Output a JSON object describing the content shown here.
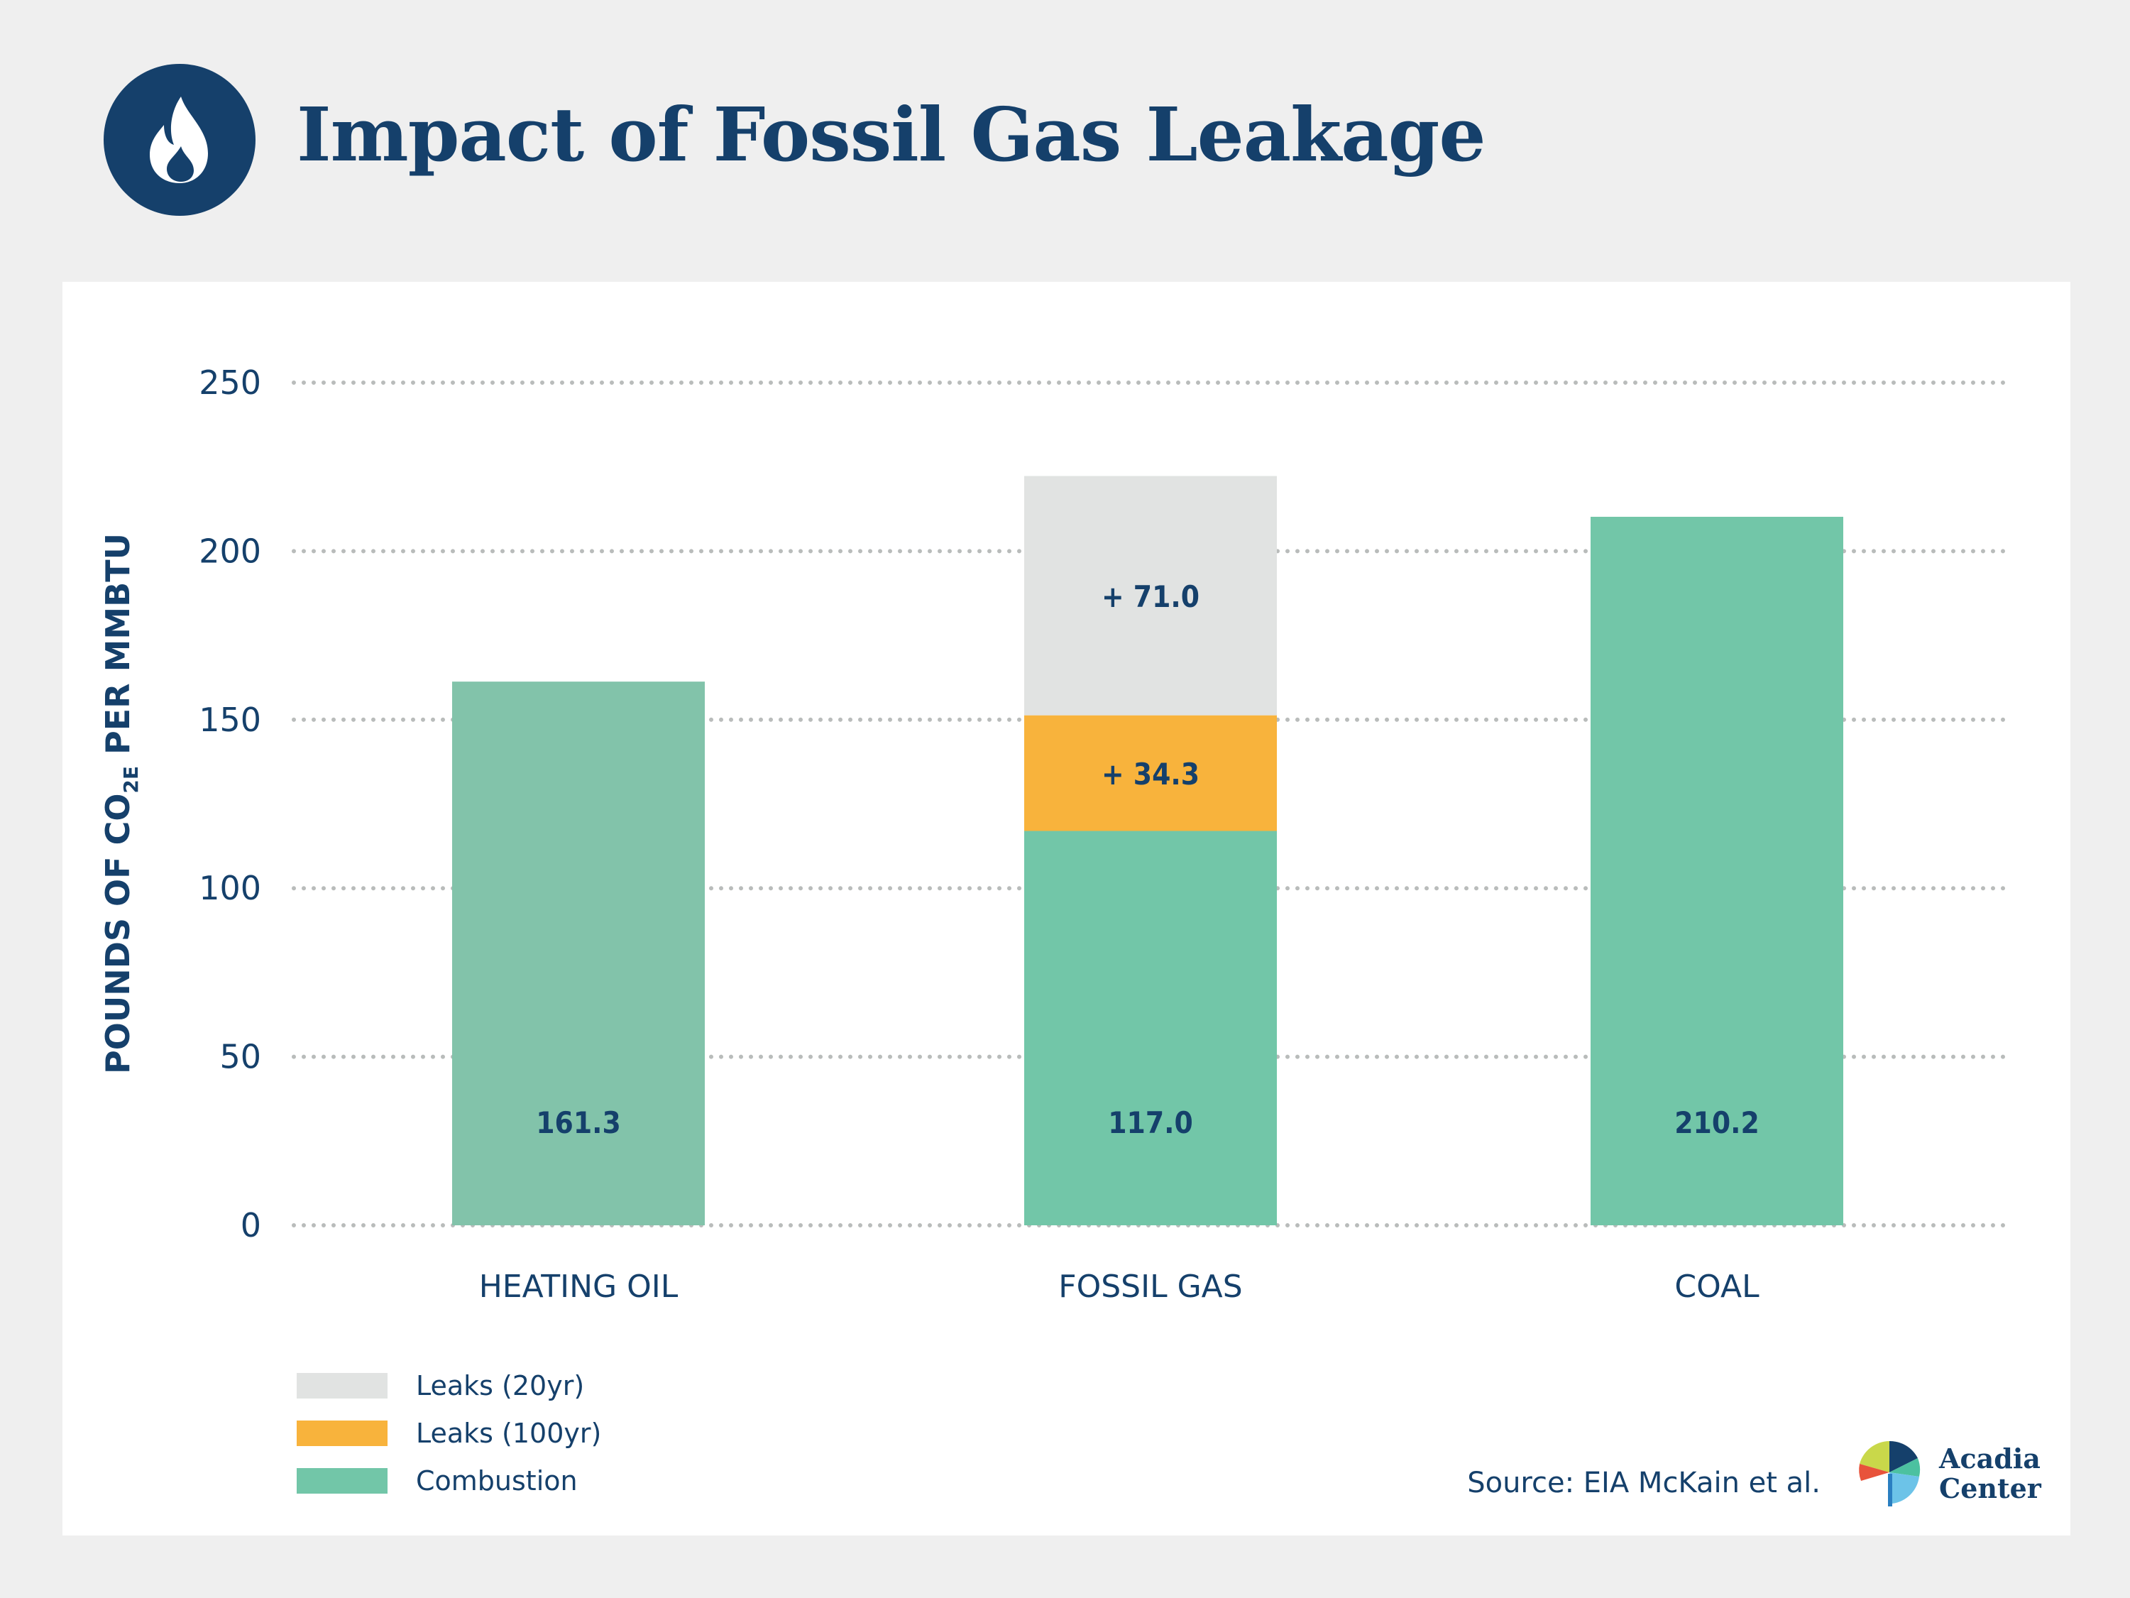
{
  "header": {
    "title": "Impact of Fossil Gas Leakage",
    "icon": "flame-icon",
    "icon_color": "#15406b"
  },
  "chart_data": {
    "type": "bar",
    "stacked": true,
    "title": "Impact of Fossil Gas Leakage",
    "ylabel": "POUNDS OF CO2E PER MMBTU",
    "xlabel": "",
    "ylim": [
      0,
      250
    ],
    "yticks": [
      0,
      50,
      100,
      150,
      200,
      250
    ],
    "grid": true,
    "categories": [
      "HEATING OIL",
      "FOSSIL GAS",
      "COAL"
    ],
    "series": [
      {
        "name": "Combustion",
        "color": "#72c6a8",
        "values": [
          161.3,
          117.0,
          210.2
        ],
        "labels": [
          "161.3",
          "117.0",
          "210.2"
        ]
      },
      {
        "name": "Leaks (100yr)",
        "color": "#f8b33c",
        "values": [
          0,
          34.3,
          0
        ],
        "labels": [
          "",
          "+ 34.3",
          ""
        ]
      },
      {
        "name": "Leaks (20yr)",
        "color": "#e1e3e2",
        "values": [
          0,
          71.0,
          0
        ],
        "labels": [
          "",
          "+ 71.0",
          ""
        ]
      }
    ],
    "heating_oil_color": "#82c3aa",
    "legend_position": "bottom-left"
  },
  "legend": [
    {
      "label": "Leaks (20yr)",
      "color": "#e1e3e2"
    },
    {
      "label": "Leaks (100yr)",
      "color": "#f8b33c"
    },
    {
      "label": "Combustion",
      "color": "#72c6a8"
    }
  ],
  "footer": {
    "source": "Source: EIA McKain et al.",
    "logo_line1": "Acadia",
    "logo_line2": "Center",
    "logo_icon": "acadia-pinwheel-icon"
  }
}
